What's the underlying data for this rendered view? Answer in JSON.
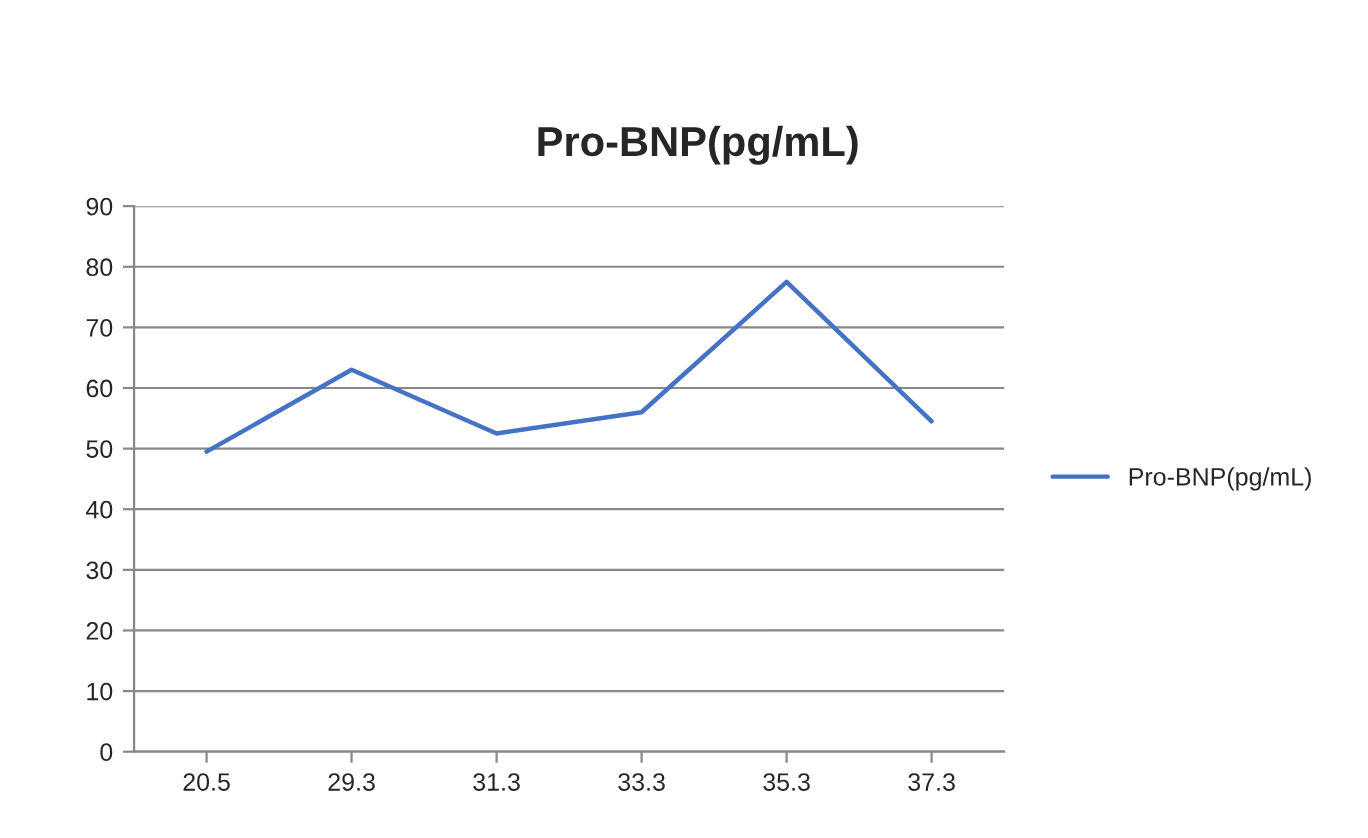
{
  "chart_data": {
    "type": "line",
    "title": "Pro-BNP(pg/mL)",
    "categories": [
      "20.5",
      "29.3",
      "31.3",
      "33.3",
      "35.3",
      "37.3"
    ],
    "series": [
      {
        "name": "Pro-BNP(pg/mL)",
        "color": "#4472c4",
        "values": [
          49.5,
          63,
          52.5,
          56,
          77.5,
          54.5
        ]
      }
    ],
    "ylim": [
      0,
      90
    ],
    "yticks": [
      0,
      10,
      20,
      30,
      40,
      50,
      60,
      70,
      80,
      90
    ],
    "grid": "y",
    "legend": "right",
    "marker": "none"
  }
}
